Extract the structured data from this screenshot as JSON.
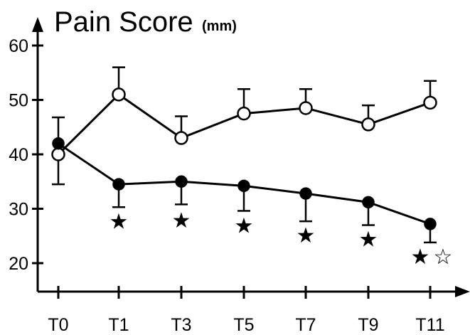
{
  "chart_data": {
    "type": "line",
    "title": "Pain Score",
    "title_unit": "(mm)",
    "xlabel": "",
    "ylabel": "",
    "categories": [
      "T0",
      "T1",
      "T3",
      "T5",
      "T7",
      "T9",
      "T11"
    ],
    "ylim": [
      10,
      60
    ],
    "yticks": [
      20,
      30,
      40,
      50,
      60
    ],
    "grid": false,
    "legend": "none",
    "series": [
      {
        "marker": "open-circle",
        "values": [
          40.0,
          51.0,
          43.0,
          47.5,
          48.5,
          45.5,
          49.5
        ],
        "error_bar_tops": [
          null,
          56.0,
          47.0,
          52.0,
          52.0,
          49.0,
          53.5
        ],
        "error_bar_bottoms": [
          34.5,
          null,
          null,
          null,
          null,
          null,
          null
        ]
      },
      {
        "marker": "filled-circle",
        "values": [
          42.0,
          34.5,
          35.0,
          34.2,
          32.8,
          31.2,
          27.2
        ],
        "error_bar_bottoms": [
          null,
          30.3,
          30.8,
          29.6,
          27.7,
          27.0,
          23.8
        ],
        "error_bar_tops": [
          46.8,
          null,
          null,
          null,
          null,
          null,
          null
        ]
      }
    ],
    "annotations": [
      {
        "category": "T1",
        "text": "★",
        "y": 27.8
      },
      {
        "category": "T3",
        "text": "★",
        "y": 28.0
      },
      {
        "category": "T5",
        "text": "★",
        "y": 27.0
      },
      {
        "category": "T7",
        "text": "★",
        "y": 25.2
      },
      {
        "category": "T9",
        "text": "★",
        "y": 24.5
      },
      {
        "category": "T11",
        "text": "★",
        "y": 21.3,
        "offset": "left"
      },
      {
        "category": "T11",
        "text": "☆",
        "y": 21.3,
        "offset": "right"
      }
    ]
  }
}
